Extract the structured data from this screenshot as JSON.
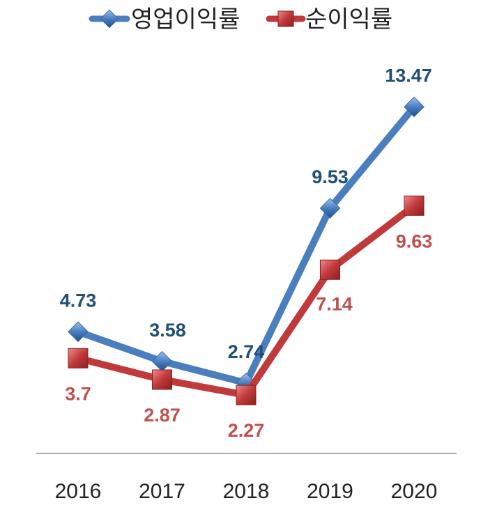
{
  "chart_data": {
    "type": "line",
    "categories": [
      "2016",
      "2017",
      "2018",
      "2019",
      "2020"
    ],
    "series": [
      {
        "name": "영업이익률",
        "values": [
          4.73,
          3.58,
          2.74,
          9.53,
          13.47
        ],
        "labels": [
          "4.73",
          "3.58",
          "2.74",
          "9.53",
          "13.47"
        ],
        "color": "#4a7ebf",
        "label_color": "#1f4e79",
        "marker": "diamond"
      },
      {
        "name": "순이익률",
        "values": [
          3.7,
          2.87,
          2.27,
          7.14,
          9.63
        ],
        "labels": [
          "3.7",
          "2.87",
          "2.27",
          "7.14",
          "9.63"
        ],
        "color": "#c0393b",
        "label_color": "#c0504d",
        "marker": "square"
      }
    ],
    "title": "",
    "xlabel": "",
    "ylabel": "",
    "ylim": [
      0,
      16
    ],
    "grid": false,
    "legend": "top-center"
  }
}
